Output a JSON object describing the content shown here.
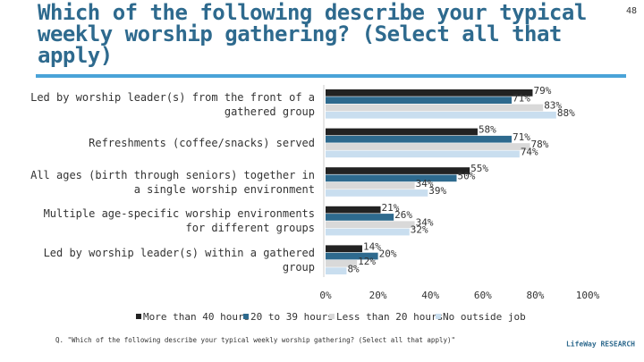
{
  "page_number": "48",
  "footnote": "Q. \"Which of the following describe your typical weekly worship gathering? (Select all that apply)\"",
  "logo": "LifeWay RESEARCH",
  "chart_data": {
    "type": "hbar",
    "title": "Which of the following describe your typical weekly worship gathering? (Select all that apply)",
    "categories": [
      "Led by worship leader(s) from the front of a gathered group",
      "Refreshments (coffee/snacks) served",
      "All ages (birth through seniors) together in a single worship environment",
      "Multiple age-specific worship environments for different groups",
      "Led by worship leader(s) within a gathered group"
    ],
    "series": [
      {
        "name": "More than 40 hours",
        "color": "#222222",
        "values": [
          79,
          58,
          55,
          21,
          14
        ],
        "value_labels": [
          "79%",
          "58%",
          "55%",
          "21%",
          "14%"
        ]
      },
      {
        "name": "20 to 39 hours",
        "color": "#2e6a8e",
        "values": [
          71,
          71,
          50,
          26,
          20
        ],
        "value_labels": [
          "71%",
          "71%",
          "50%",
          "26%",
          "20%"
        ]
      },
      {
        "name": "Less than 20 hours",
        "color": "#d9d9d9",
        "values": [
          83,
          78,
          34,
          34,
          12
        ],
        "value_labels": [
          "83%",
          "78%",
          "34%",
          "34%",
          "12%"
        ]
      },
      {
        "name": "No outside job",
        "color": "#c9deef",
        "values": [
          88,
          74,
          39,
          32,
          8
        ],
        "value_labels": [
          "88%",
          "74%",
          "39%",
          "32%",
          "8%"
        ]
      }
    ],
    "xlim": [
      0,
      100
    ],
    "xticks": [
      {
        "value": 0,
        "label": "0%"
      },
      {
        "value": 20,
        "label": "20%"
      },
      {
        "value": 40,
        "label": "40%"
      },
      {
        "value": 60,
        "label": "60%"
      },
      {
        "value": 80,
        "label": "80%"
      },
      {
        "value": 100,
        "label": "100%"
      }
    ],
    "legend": "bottom"
  }
}
